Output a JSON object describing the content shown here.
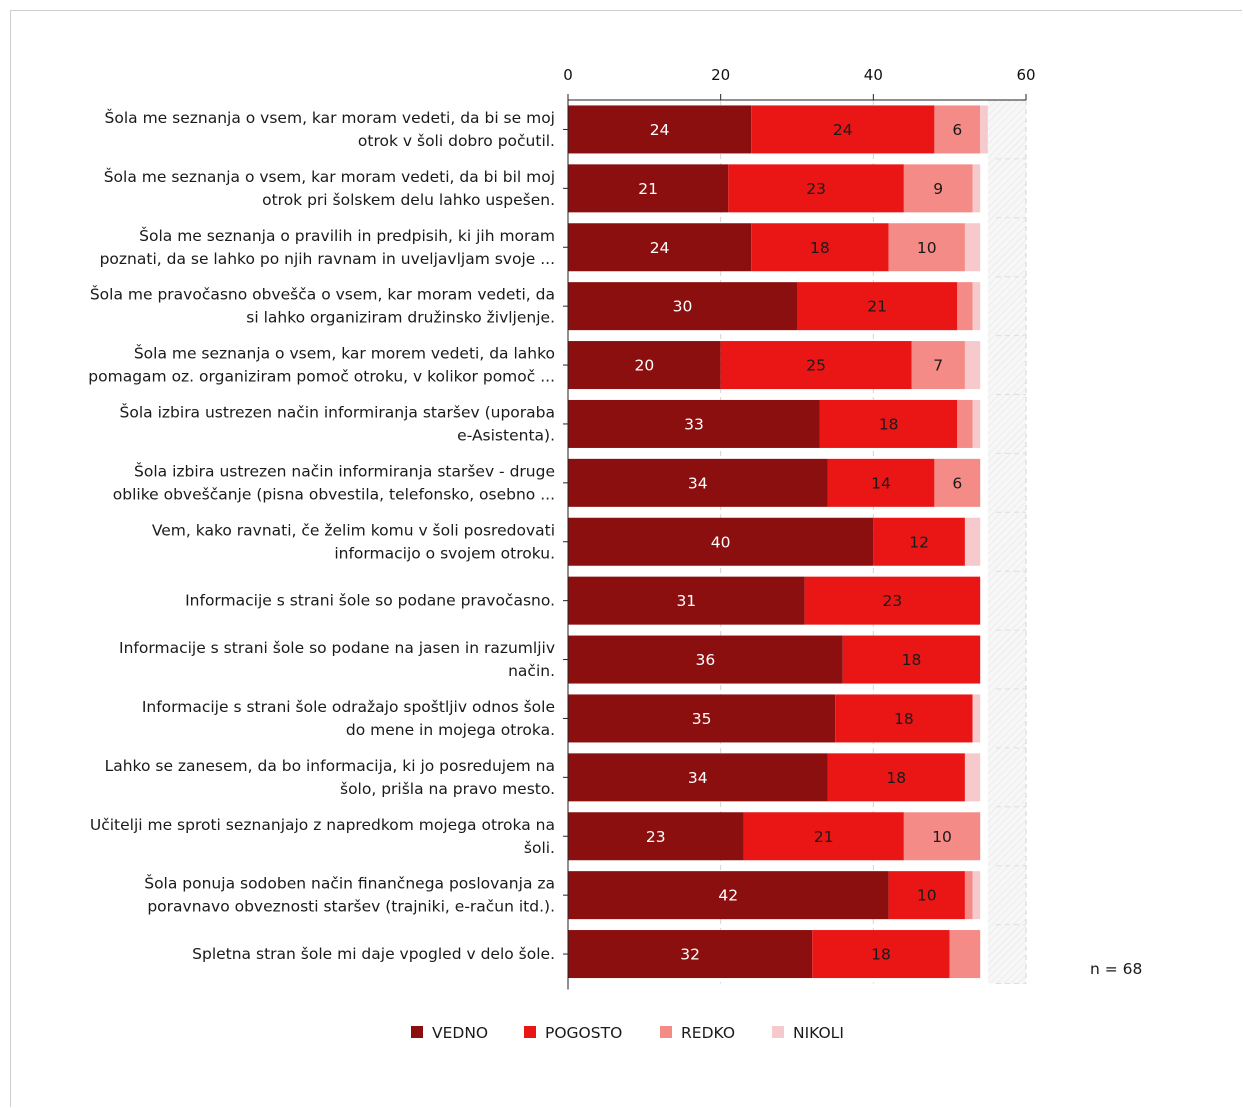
{
  "chart_data": {
    "type": "bar",
    "orientation": "horizontal",
    "stacked": true,
    "categories": [
      [
        "Šola me seznanja o vsem, kar moram vedeti, da bi se moj",
        "otrok v šoli dobro počutil."
      ],
      [
        "Šola me seznanja o vsem, kar moram vedeti, da bi bil moj",
        "otrok pri šolskem delu lahko uspešen."
      ],
      [
        "Šola me seznanja o pravilih in predpisih, ki jih moram",
        "poznati, da se lahko po njih ravnam in uveljavljam svoje ..."
      ],
      [
        "Šola me pravočasno obvešča o vsem, kar moram vedeti, da",
        "si lahko organiziram družinsko življenje."
      ],
      [
        "Šola me seznanja o vsem, kar morem vedeti, da lahko",
        "pomagam oz. organiziram pomoč otroku, v kolikor  pomoč ..."
      ],
      [
        "Šola izbira ustrezen način informiranja staršev (uporaba",
        "e-Asistenta)."
      ],
      [
        "Šola izbira ustrezen način informiranja staršev - druge",
        "oblike obveščanje (pisna obvestila, telefonsko, osebno ..."
      ],
      [
        "Vem, kako ravnati, če želim komu v šoli posredovati",
        "informacijo o svojem otroku."
      ],
      [
        "Informacije s strani šole so podane pravočasno."
      ],
      [
        "Informacije s strani šole so podane na jasen in razumljiv",
        "način."
      ],
      [
        "Informacije s strani šole odražajo spoštljiv odnos šole",
        "do mene in mojega otroka."
      ],
      [
        "Lahko se zanesem, da bo informacija, ki jo posredujem na",
        "šolo, prišla na pravo mesto."
      ],
      [
        "Učitelji me sproti seznanjajo z napredkom mojega otroka na",
        "šoli."
      ],
      [
        "Šola ponuja sodoben način finančnega poslovanja za",
        "poravnavo obveznosti staršev (trajniki, e-račun itd.)."
      ],
      [
        "Spletna stran šole mi daje vpogled v delo šole."
      ]
    ],
    "series": [
      {
        "name": "VEDNO",
        "color": "#8b0f0f",
        "label_color": "#ffffff",
        "values": [
          24,
          21,
          24,
          30,
          20,
          33,
          34,
          40,
          31,
          36,
          35,
          34,
          23,
          42,
          32
        ]
      },
      {
        "name": "POGOSTO",
        "color": "#ea1616",
        "label_color": "#1a1a1a",
        "values": [
          24,
          23,
          18,
          21,
          25,
          18,
          14,
          12,
          23,
          18,
          18,
          18,
          21,
          10,
          18
        ]
      },
      {
        "name": "REDKO",
        "color": "#f48b86",
        "label_color": "#1a1a1a",
        "values": [
          6,
          9,
          10,
          2,
          7,
          2,
          6,
          0,
          0,
          0,
          0,
          0,
          10,
          1,
          4
        ]
      },
      {
        "name": "NIKOLI",
        "color": "#f6c9cc",
        "label_color": "#1a1a1a",
        "values": [
          1,
          1,
          2,
          1,
          2,
          1,
          0,
          2,
          0,
          0,
          1,
          2,
          0,
          1,
          0
        ]
      }
    ],
    "xlim": [
      0,
      60
    ],
    "xticks": [
      0,
      20,
      40,
      60
    ],
    "value_label_min": 5,
    "grid": "dashed vertical",
    "legend_position": "bottom",
    "note": "n = 68"
  }
}
